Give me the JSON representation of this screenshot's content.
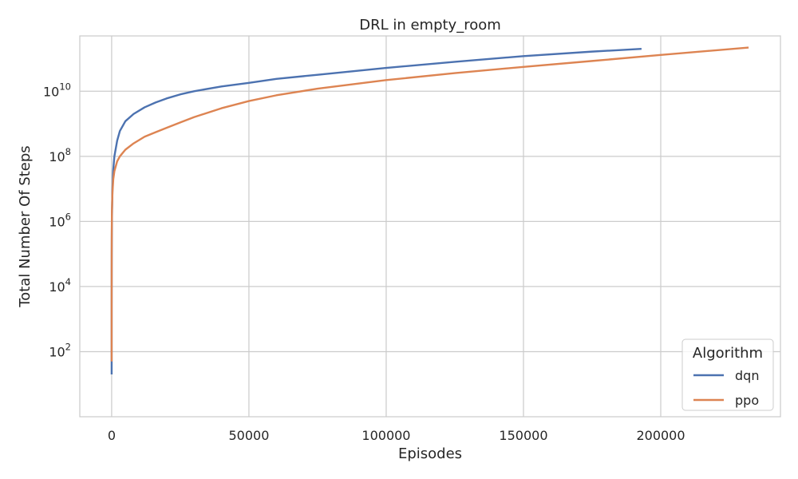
{
  "chart_data": {
    "type": "line",
    "title": "DRL in empty_room",
    "xlabel": "Episodes",
    "ylabel": "Total Number Of Steps",
    "xlim": [
      -11600,
      243600
    ],
    "ylim": [
      1.0,
      500000000000.0
    ],
    "yscale": "log",
    "grid": true,
    "xticks": [
      0,
      50000,
      100000,
      150000,
      200000
    ],
    "xtick_labels": [
      "0",
      "50000",
      "100000",
      "150000",
      "200000"
    ],
    "yticks": [
      100,
      10000,
      1000000,
      100000000,
      10000000000
    ],
    "ytick_labels": [
      {
        "base": "10",
        "exp": "2"
      },
      {
        "base": "10",
        "exp": "4"
      },
      {
        "base": "10",
        "exp": "6"
      },
      {
        "base": "10",
        "exp": "8"
      },
      {
        "base": "10",
        "exp": "10"
      }
    ],
    "legend": {
      "title": "Algorithm",
      "position": "lower-right"
    },
    "series": [
      {
        "name": "dqn",
        "color": "#4c72b0",
        "x": [
          0,
          1,
          5,
          20,
          50,
          100,
          300,
          600,
          1000,
          2000,
          3000,
          5000,
          8000,
          12000,
          16000,
          20000,
          25000,
          30000,
          40000,
          50000,
          60000,
          75000,
          100000,
          125000,
          150000,
          175000,
          193000
        ],
        "y": [
          20,
          100,
          2000,
          40000,
          300000,
          1200000,
          10000000,
          40000000,
          100000000,
          300000000,
          600000000,
          1200000000,
          2000000000,
          3200000000,
          4500000000,
          6000000000,
          8000000000,
          10000000000,
          14000000000,
          18000000000,
          24000000000,
          32000000000,
          52000000000,
          80000000000,
          120000000000,
          165000000000,
          200000000000
        ]
      },
      {
        "name": "ppo",
        "color": "#dd8452",
        "x": [
          0,
          1,
          5,
          20,
          50,
          100,
          300,
          600,
          1000,
          2000,
          3000,
          5000,
          8000,
          12000,
          16000,
          20000,
          25000,
          30000,
          40000,
          50000,
          60000,
          75000,
          100000,
          125000,
          150000,
          175000,
          200000,
          232000
        ],
        "y": [
          50,
          200,
          5000,
          100000,
          500000,
          2000000,
          8000000,
          20000000,
          35000000,
          70000000,
          100000000,
          160000000,
          250000000,
          400000000,
          550000000,
          750000000,
          1100000000,
          1600000000,
          3000000000,
          5000000000,
          7500000000,
          12000000000,
          22000000000,
          36000000000,
          56000000000,
          85000000000,
          130000000000,
          220000000000
        ]
      }
    ]
  }
}
